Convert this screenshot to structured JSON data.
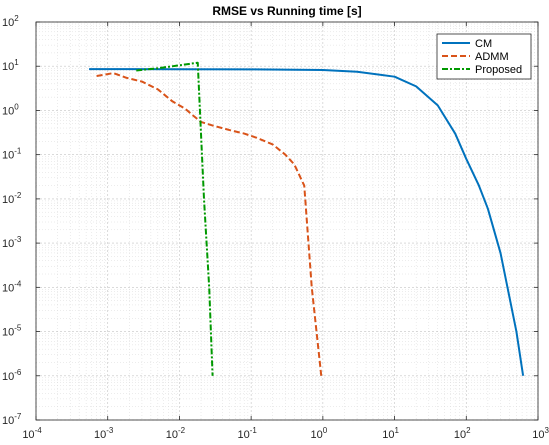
{
  "chart_data": {
    "type": "line",
    "title": "RMSE vs Running time [s]",
    "xlabel": "",
    "ylabel": "",
    "xscale": "log",
    "yscale": "log",
    "xlim": [
      0.0001,
      1000
    ],
    "ylim": [
      1e-07,
      100
    ],
    "grid": true,
    "minor_grid": true,
    "legend_placement": "top-right",
    "x_ticks": [
      {
        "value": 0.0001,
        "base": "10",
        "exp": "-4"
      },
      {
        "value": 0.001,
        "base": "10",
        "exp": "-3"
      },
      {
        "value": 0.01,
        "base": "10",
        "exp": "-2"
      },
      {
        "value": 0.1,
        "base": "10",
        "exp": "-1"
      },
      {
        "value": 1,
        "base": "10",
        "exp": "0"
      },
      {
        "value": 10,
        "base": "10",
        "exp": "1"
      },
      {
        "value": 100,
        "base": "10",
        "exp": "2"
      },
      {
        "value": 1000,
        "base": "10",
        "exp": "3"
      }
    ],
    "y_ticks": [
      {
        "value": 1e-07,
        "base": "10",
        "exp": "-7"
      },
      {
        "value": 1e-06,
        "base": "10",
        "exp": "-6"
      },
      {
        "value": 1e-05,
        "base": "10",
        "exp": "-5"
      },
      {
        "value": 0.0001,
        "base": "10",
        "exp": "-4"
      },
      {
        "value": 0.001,
        "base": "10",
        "exp": "-3"
      },
      {
        "value": 0.01,
        "base": "10",
        "exp": "-2"
      },
      {
        "value": 0.1,
        "base": "10",
        "exp": "-1"
      },
      {
        "value": 1,
        "base": "10",
        "exp": "0"
      },
      {
        "value": 10,
        "base": "10",
        "exp": "1"
      },
      {
        "value": 100,
        "base": "10",
        "exp": "2"
      }
    ],
    "series": [
      {
        "name": "CM",
        "color": "#0072BD",
        "dash": "solid",
        "points": [
          [
            0.00055,
            8.6
          ],
          [
            0.001,
            8.6
          ],
          [
            0.01,
            8.55
          ],
          [
            0.1,
            8.5
          ],
          [
            1,
            8.2
          ],
          [
            3,
            7.5
          ],
          [
            10,
            5.8
          ],
          [
            20,
            3.5
          ],
          [
            40,
            1.3
          ],
          [
            70,
            0.3
          ],
          [
            100,
            0.08
          ],
          [
            150,
            0.02
          ],
          [
            200,
            0.006
          ],
          [
            300,
            0.0006
          ],
          [
            400,
            6e-05
          ],
          [
            500,
            1e-05
          ],
          [
            620,
            1e-06
          ]
        ]
      },
      {
        "name": "ADMM",
        "color": "#D95319",
        "dash": "dashed",
        "points": [
          [
            0.0007,
            6.0
          ],
          [
            0.0012,
            7.0
          ],
          [
            0.0018,
            5.5
          ],
          [
            0.003,
            4.5
          ],
          [
            0.005,
            3.0
          ],
          [
            0.008,
            1.6
          ],
          [
            0.012,
            1.1
          ],
          [
            0.015,
            0.8
          ],
          [
            0.02,
            0.55
          ],
          [
            0.03,
            0.45
          ],
          [
            0.05,
            0.36
          ],
          [
            0.08,
            0.3
          ],
          [
            0.12,
            0.24
          ],
          [
            0.2,
            0.17
          ],
          [
            0.3,
            0.1
          ],
          [
            0.4,
            0.06
          ],
          [
            0.55,
            0.02
          ],
          [
            0.7,
            0.0001
          ],
          [
            0.95,
            1e-06
          ]
        ]
      },
      {
        "name": "Proposed",
        "color": "#009900",
        "dash": "dashdot",
        "points": [
          [
            0.0025,
            8.0
          ],
          [
            0.005,
            9.0
          ],
          [
            0.01,
            10.5
          ],
          [
            0.018,
            12.0
          ],
          [
            0.022,
            0.01
          ],
          [
            0.026,
            0.0001
          ],
          [
            0.029,
            1e-06
          ]
        ]
      }
    ]
  }
}
